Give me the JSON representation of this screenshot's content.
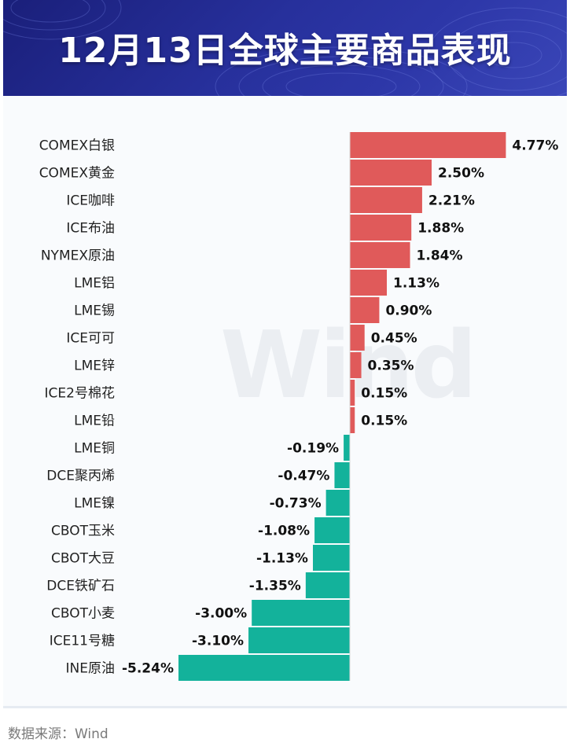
{
  "header": {
    "title": "12月13日全球主要商品表现"
  },
  "watermark": "Wind",
  "footer": {
    "source": "数据来源：Wind"
  },
  "colors": {
    "positive": "#e05a5a",
    "negative": "#13b29b",
    "header_bg": "#27309c"
  },
  "chart_data": {
    "type": "bar",
    "orientation": "horizontal",
    "categories": [
      "COMEX白银",
      "COMEX黄金",
      "ICE咖啡",
      "ICE布油",
      "NYMEX原油",
      "LME铝",
      "LME锡",
      "ICE可可",
      "LME锌",
      "ICE2号棉花",
      "LME铅",
      "LME铜",
      "DCE聚丙烯",
      "LME镍",
      "CBOT玉米",
      "CBOT大豆",
      "DCE铁矿石",
      "CBOT小麦",
      "ICE11号糖",
      "INE原油"
    ],
    "values": [
      4.77,
      2.5,
      2.21,
      1.88,
      1.84,
      1.13,
      0.9,
      0.45,
      0.35,
      0.15,
      0.15,
      -0.19,
      -0.47,
      -0.73,
      -1.08,
      -1.13,
      -1.35,
      -3.0,
      -3.1,
      -5.24
    ],
    "labels": [
      "4.77%",
      "2.50%",
      "2.21%",
      "1.88%",
      "1.84%",
      "1.13%",
      "0.90%",
      "0.45%",
      "0.35%",
      "0.15%",
      "0.15%",
      "-0.19%",
      "-0.47%",
      "-0.73%",
      "-1.08%",
      "-1.13%",
      "-1.35%",
      "-3.00%",
      "-3.10%",
      "-5.24%"
    ],
    "unit": "%",
    "grid": false,
    "legend": false
  }
}
